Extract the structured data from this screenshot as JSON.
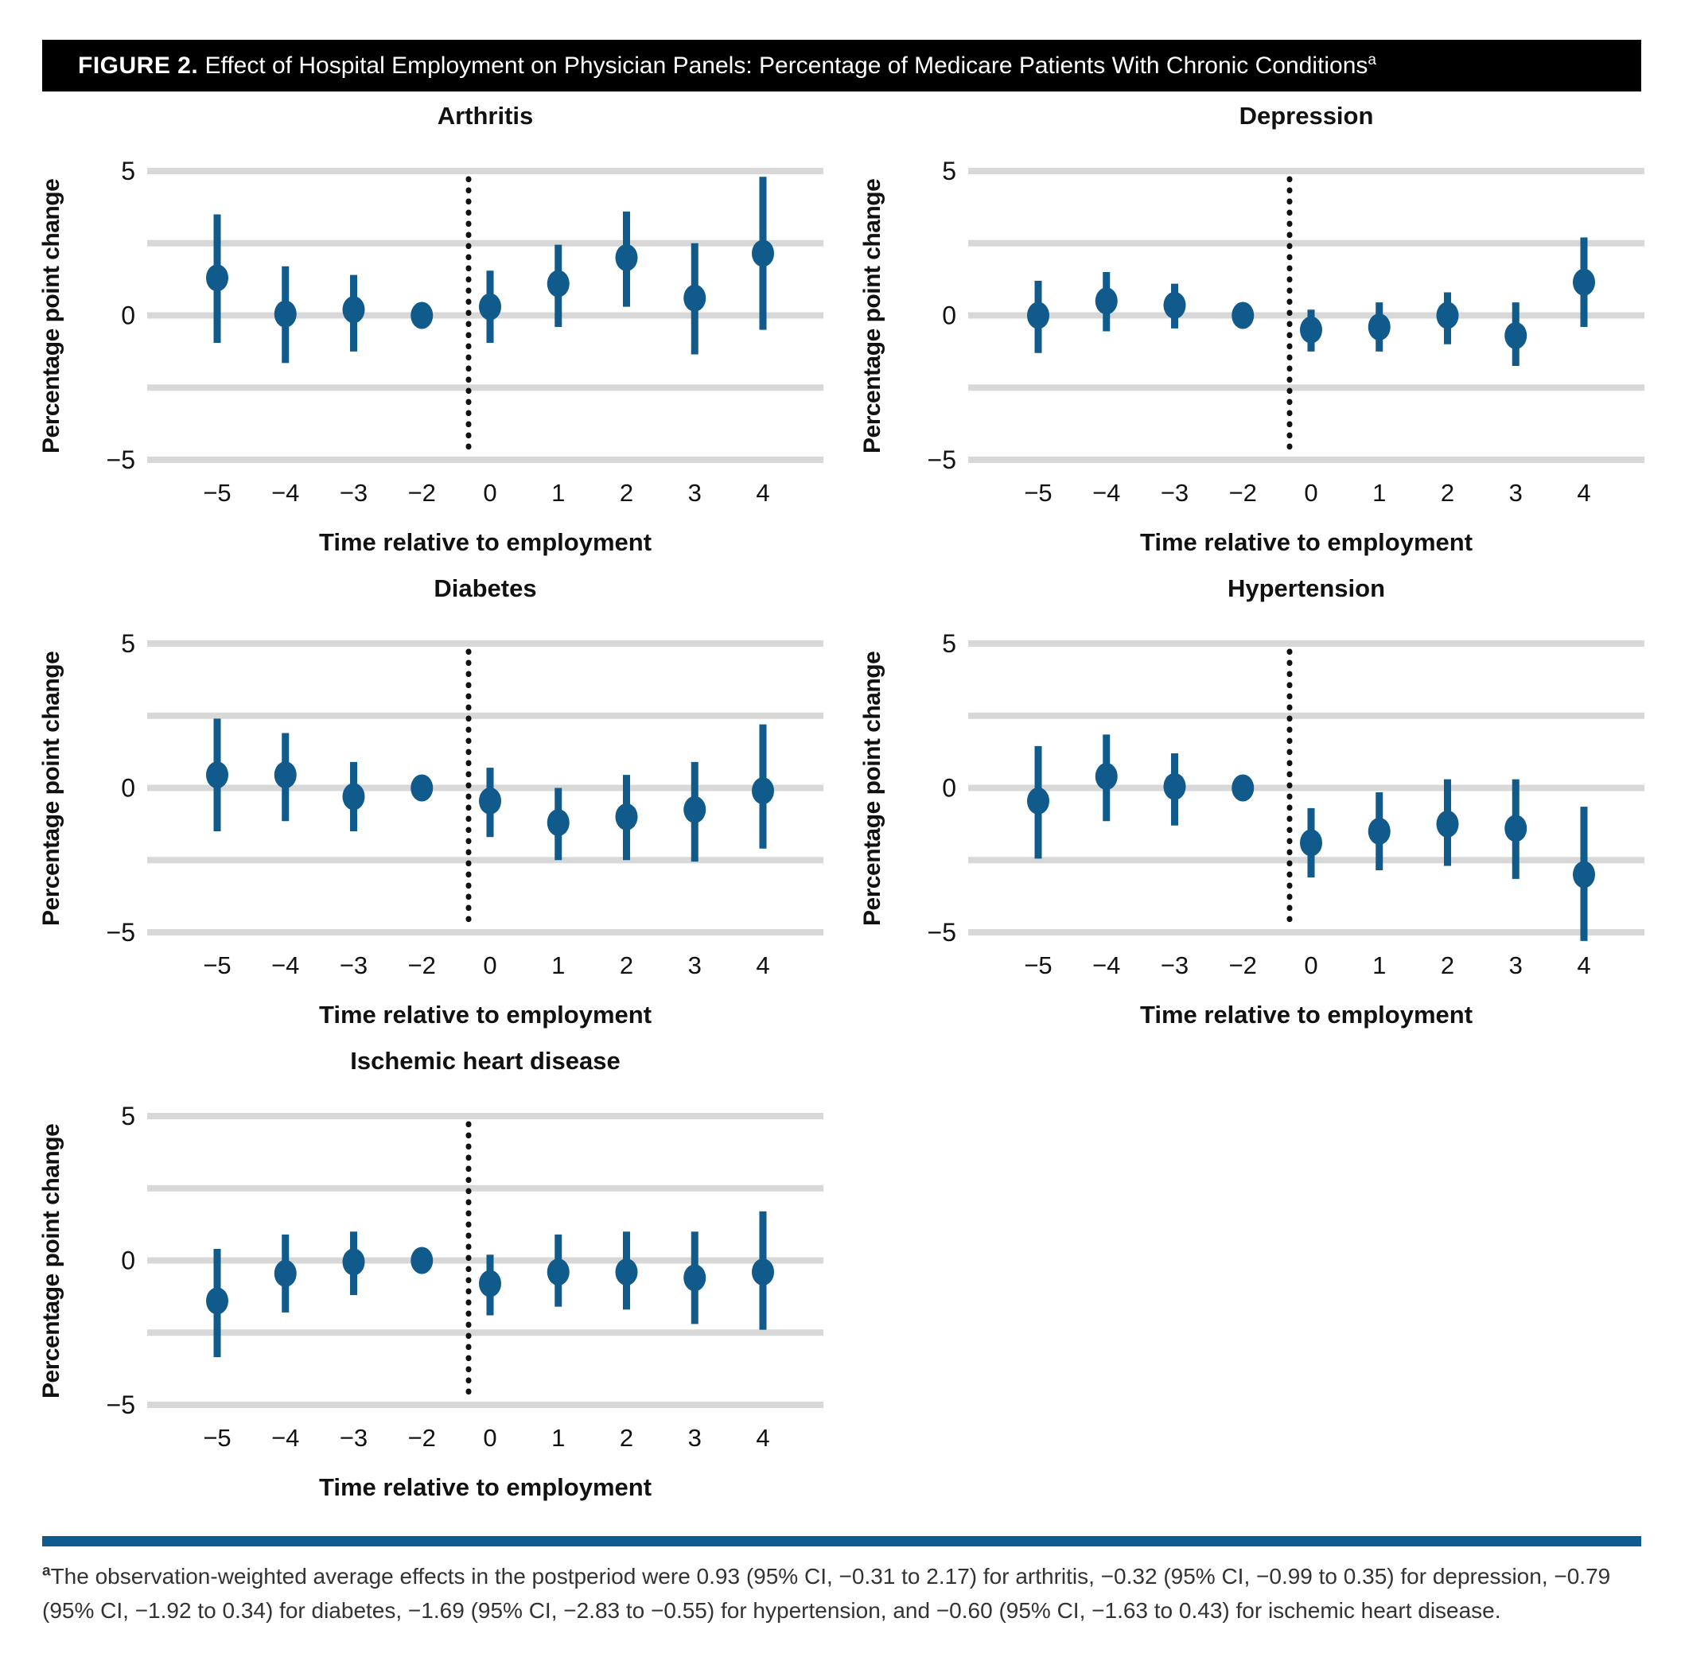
{
  "figure": {
    "label": "FIGURE 2.",
    "title": " Effect of Hospital Employment on Physician Panels: Percentage of Medicare Patients With Chronic Conditions",
    "title_superscript": "a"
  },
  "footnote": {
    "marker": "a",
    "text": "The observation-weighted average effects in the postperiod were 0.93 (95% CI, −0.31 to 2.17) for arthritis, −0.32 (95% CI, −0.99 to 0.35) for depression, −0.79 (95% CI, −1.92 to 0.34) for diabetes, −1.69 (95% CI, −2.83 to −0.55) for hypertension, and −0.60 (95% CI, −1.63 to 0.43) for ischemic heart disease."
  },
  "colors": {
    "point_blue": "#105A8C",
    "gridline_gray": "#D8D8D8",
    "event_line_black": "#111111",
    "header_bg": "#000000",
    "divider_blue": "#0E5C8F"
  },
  "chart_data": {
    "type": "scatter",
    "subtype": "point-estimates-with-95pct-ci",
    "x_label": "Time relative to employment",
    "y_label": "Percentage point change",
    "x": [
      -5,
      -4,
      -3,
      -2,
      0,
      1,
      2,
      3,
      4
    ],
    "x_tick_labels": [
      "−5",
      "−4",
      "−3",
      "−2",
      "0",
      "1",
      "2",
      "3",
      "4"
    ],
    "ylim": [
      -5,
      5
    ],
    "y_gridlines": [
      5,
      2.5,
      0,
      -2.5,
      -5
    ],
    "y_tick_labels": [
      {
        "value": 5,
        "label": "5"
      },
      {
        "value": 0,
        "label": "0"
      },
      {
        "value": -5,
        "label": "−5"
      }
    ],
    "reference_period": -2,
    "event_line": "dotted vertical line between -2 and 0",
    "grid": "horizontal gridlines on",
    "legend": "none",
    "panels": [
      {
        "title": "Arthritis",
        "estimates": [
          1.3,
          0.05,
          0.2,
          0,
          0.3,
          1.1,
          2.0,
          0.6,
          2.15
        ],
        "ci_low": [
          -0.95,
          -1.65,
          -1.25,
          null,
          -0.95,
          -0.4,
          0.3,
          -1.35,
          -0.5
        ],
        "ci_high": [
          3.5,
          1.7,
          1.4,
          null,
          1.55,
          2.45,
          3.6,
          2.5,
          4.8
        ]
      },
      {
        "title": "Depression",
        "estimates": [
          0.0,
          0.5,
          0.35,
          0,
          -0.5,
          -0.4,
          0.0,
          -0.7,
          1.15
        ],
        "ci_low": [
          -1.3,
          -0.55,
          -0.45,
          null,
          -1.25,
          -1.25,
          -1.0,
          -1.75,
          -0.4
        ],
        "ci_high": [
          1.2,
          1.5,
          1.1,
          null,
          0.2,
          0.45,
          0.8,
          0.45,
          2.7
        ]
      },
      {
        "title": "Diabetes",
        "estimates": [
          0.45,
          0.45,
          -0.3,
          0,
          -0.45,
          -1.2,
          -1.0,
          -0.75,
          -0.1
        ],
        "ci_low": [
          -1.5,
          -1.15,
          -1.5,
          null,
          -1.7,
          -2.5,
          -2.5,
          -2.55,
          -2.1
        ],
        "ci_high": [
          2.4,
          1.9,
          0.9,
          null,
          0.7,
          0.0,
          0.45,
          0.9,
          2.2
        ]
      },
      {
        "title": "Hypertension",
        "estimates": [
          -0.45,
          0.4,
          0.05,
          0,
          -1.9,
          -1.5,
          -1.25,
          -1.4,
          -3.0
        ],
        "ci_low": [
          -2.45,
          -1.15,
          -1.3,
          null,
          -3.1,
          -2.85,
          -2.7,
          -3.15,
          -5.3
        ],
        "ci_high": [
          1.45,
          1.85,
          1.2,
          null,
          -0.7,
          -0.15,
          0.3,
          0.3,
          -0.65
        ]
      },
      {
        "title": "Ischemic heart disease",
        "estimates": [
          -1.4,
          -0.45,
          -0.05,
          0,
          -0.8,
          -0.4,
          -0.4,
          -0.6,
          -0.4
        ],
        "ci_low": [
          -3.35,
          -1.8,
          -1.2,
          null,
          -1.9,
          -1.6,
          -1.7,
          -2.2,
          -2.4
        ],
        "ci_high": [
          0.4,
          0.9,
          1.0,
          null,
          0.2,
          0.9,
          1.0,
          1.0,
          1.7
        ]
      }
    ]
  }
}
